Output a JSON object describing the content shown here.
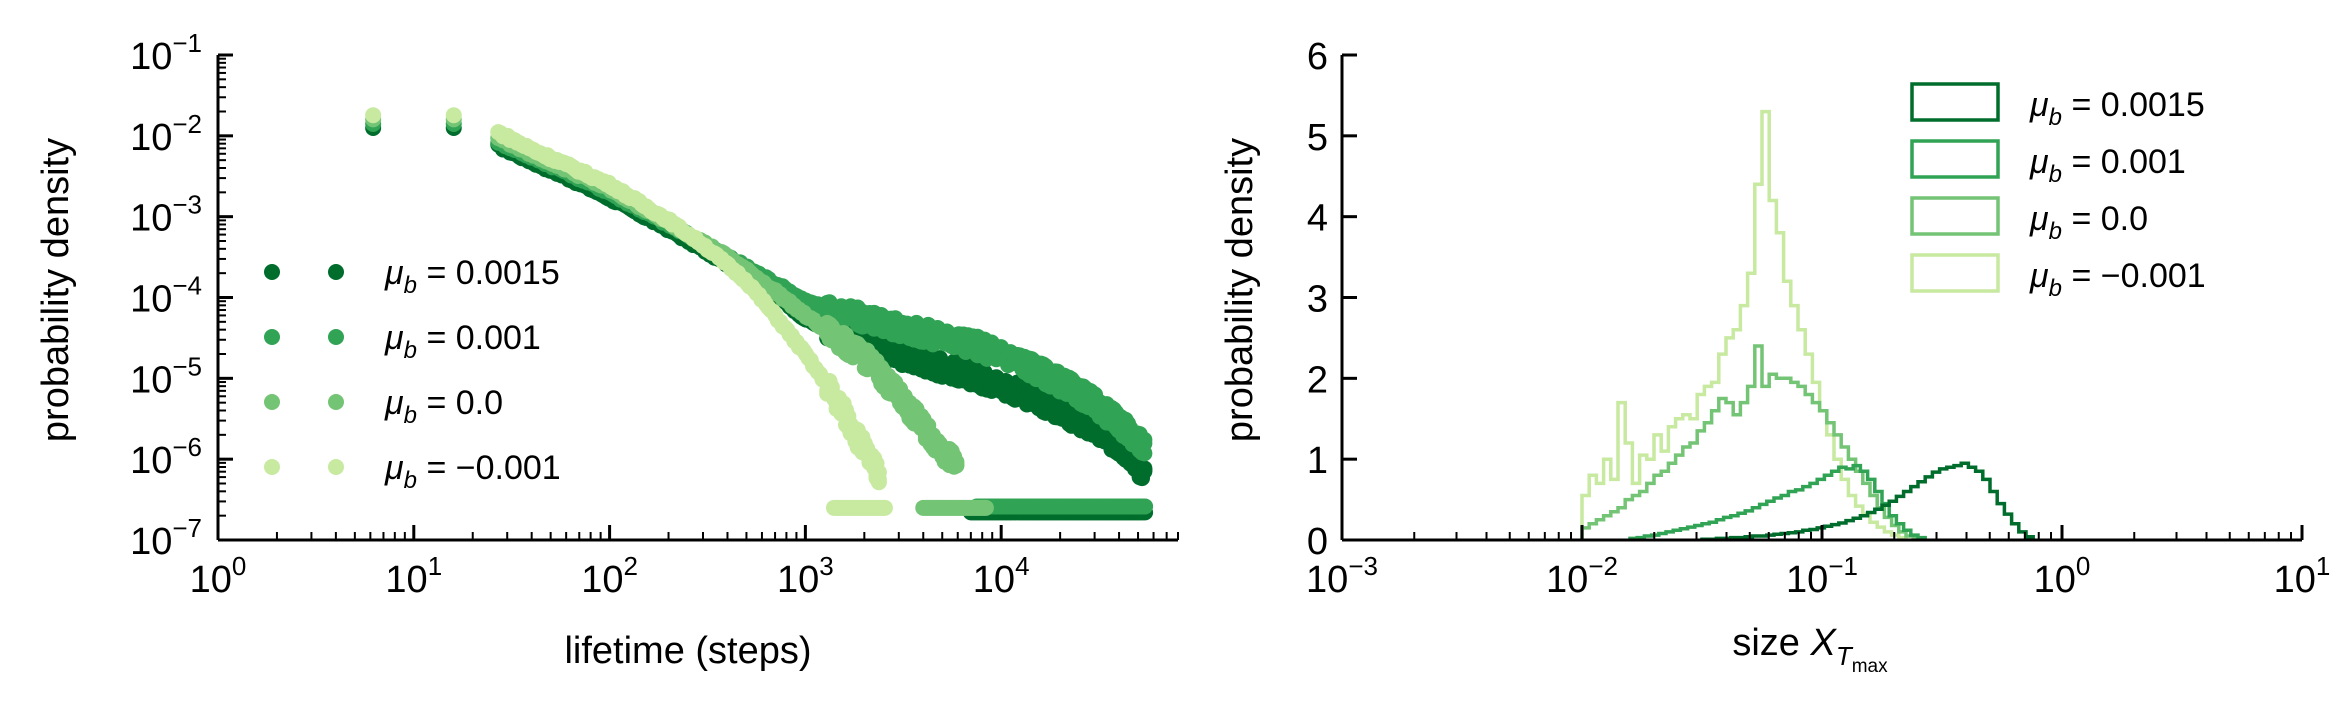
{
  "colors": {
    "mu_0.0015": "#006d2c",
    "mu_0.001": "#31a354",
    "mu_0.0": "#74c476",
    "mu_-0.001": "#c7e9a0"
  },
  "chart_data": [
    {
      "type": "scatter",
      "xscale": "log",
      "yscale": "log",
      "xlabel": "lifetime (steps)",
      "ylabel": "probability density",
      "xlim": [
        1,
        80000
      ],
      "ylim": [
        1e-07,
        0.1
      ],
      "x_ticks": [
        {
          "value": 1,
          "base": "10",
          "exp": "0"
        },
        {
          "value": 10,
          "base": "10",
          "exp": "1"
        },
        {
          "value": 100,
          "base": "10",
          "exp": "2"
        },
        {
          "value": 1000,
          "base": "10",
          "exp": "3"
        },
        {
          "value": 10000,
          "base": "10",
          "exp": "4"
        }
      ],
      "y_ticks": [
        {
          "value": 1e-07,
          "base": "10",
          "exp": "−7"
        },
        {
          "value": 1e-06,
          "base": "10",
          "exp": "−6"
        },
        {
          "value": 1e-05,
          "base": "10",
          "exp": "−5"
        },
        {
          "value": 0.0001,
          "base": "10",
          "exp": "−4"
        },
        {
          "value": 0.001,
          "base": "10",
          "exp": "−3"
        },
        {
          "value": 0.01,
          "base": "10",
          "exp": "−2"
        },
        {
          "value": 0.1,
          "base": "10",
          "exp": "−1"
        }
      ],
      "legend": {
        "position": "lower-left",
        "entries": [
          {
            "symbol": "μ",
            "sub": "b",
            "rest": " = 0.0015",
            "color_key": "mu_0.0015"
          },
          {
            "symbol": "μ",
            "sub": "b",
            "rest": " = 0.001",
            "color_key": "mu_0.001"
          },
          {
            "symbol": "μ",
            "sub": "b",
            "rest": " = 0.0",
            "color_key": "mu_0.0"
          },
          {
            "symbol": "μ",
            "sub": "b",
            "rest": " = −0.001",
            "color_key": "mu_-0.001"
          }
        ]
      },
      "series": [
        {
          "color_key": "mu_0.0015",
          "curve": [
            [
              6.2,
              0.0125
            ],
            [
              16,
              0.0125
            ],
            [
              27,
              0.0075
            ],
            [
              40,
              0.0048
            ],
            [
              60,
              0.0031
            ],
            [
              100,
              0.0017
            ],
            [
              200,
              0.0007
            ],
            [
              400,
              0.00026
            ],
            [
              700,
              0.00011
            ],
            [
              1000,
              5.5e-05
            ],
            [
              1500,
              3.3e-05
            ],
            [
              2500,
              2.2e-05
            ],
            [
              4000,
              1.6e-05
            ],
            [
              7000,
              1.1e-05
            ],
            [
              12000,
              7e-06
            ],
            [
              20000,
              4e-06
            ],
            [
              30000,
              2.3e-06
            ],
            [
              45000,
              1.2e-06
            ],
            [
              55000,
              6e-07
            ]
          ],
          "floor": {
            "x0": 7000,
            "x1": 55000,
            "y": 2.2e-07
          }
        },
        {
          "color_key": "mu_0.001",
          "curve": [
            [
              6.2,
              0.014
            ],
            [
              16,
              0.014
            ],
            [
              27,
              0.0085
            ],
            [
              40,
              0.0055
            ],
            [
              60,
              0.0036
            ],
            [
              100,
              0.002
            ],
            [
              200,
              0.0008
            ],
            [
              400,
              0.00032
            ],
            [
              700,
              0.00015
            ],
            [
              1000,
              9e-05
            ],
            [
              1500,
              6.5e-05
            ],
            [
              2500,
              4.8e-05
            ],
            [
              4000,
              3.6e-05
            ],
            [
              7000,
              2.7e-05
            ],
            [
              12000,
              1.7e-05
            ],
            [
              20000,
              9e-06
            ],
            [
              30000,
              5e-06
            ],
            [
              45000,
              2.2e-06
            ],
            [
              55000,
              1.3e-06
            ]
          ],
          "floor": {
            "x0": 7500,
            "x1": 55000,
            "y": 2.6e-07
          }
        },
        {
          "color_key": "mu_0.0",
          "curve": [
            [
              6.2,
              0.016
            ],
            [
              16,
              0.016
            ],
            [
              27,
              0.0095
            ],
            [
              40,
              0.006
            ],
            [
              60,
              0.0039
            ],
            [
              100,
              0.0022
            ],
            [
              200,
              0.00085
            ],
            [
              400,
              0.00032
            ],
            [
              700,
              0.00012
            ],
            [
              1000,
              6e-05
            ],
            [
              1500,
              3e-05
            ],
            [
              2200,
              1.5e-05
            ],
            [
              3000,
              6e-06
            ],
            [
              4000,
              2.5e-06
            ],
            [
              5000,
              1.3e-06
            ],
            [
              6000,
              8e-07
            ]
          ],
          "floor": {
            "x0": 4000,
            "x1": 8500,
            "y": 2.5e-07
          }
        },
        {
          "color_key": "mu_-0.001",
          "curve": [
            [
              6.2,
              0.018
            ],
            [
              16,
              0.018
            ],
            [
              27,
              0.011
            ],
            [
              40,
              0.0068
            ],
            [
              60,
              0.0044
            ],
            [
              100,
              0.0025
            ],
            [
              200,
              0.0009
            ],
            [
              300,
              0.00045
            ],
            [
              500,
              0.00016
            ],
            [
              700,
              6e-05
            ],
            [
              1000,
              2e-05
            ],
            [
              1300,
              8e-06
            ],
            [
              1600,
              3.5e-06
            ],
            [
              2000,
              1.3e-06
            ],
            [
              2400,
              6e-07
            ]
          ],
          "floor": {
            "x0": 1400,
            "x1": 2600,
            "y": 2.5e-07
          }
        }
      ]
    },
    {
      "type": "histogram",
      "xscale": "log",
      "yscale": "linear",
      "xlabel": "size",
      "xlabel_symbol": "X",
      "xlabel_sub": "T",
      "xlabel_subsub": "max",
      "ylabel": "probability density",
      "xlim": [
        0.001,
        10
      ],
      "ylim": [
        0,
        6
      ],
      "x_ticks": [
        {
          "value": 0.001,
          "base": "10",
          "exp": "−3"
        },
        {
          "value": 0.01,
          "base": "10",
          "exp": "−2"
        },
        {
          "value": 0.1,
          "base": "10",
          "exp": "−1"
        },
        {
          "value": 1,
          "base": "10",
          "exp": "0"
        },
        {
          "value": 10,
          "base": "10",
          "exp": "1"
        }
      ],
      "y_ticks": [
        0,
        1,
        2,
        3,
        4,
        5,
        6
      ],
      "legend": {
        "position": "top-right",
        "entries": [
          {
            "symbol": "μ",
            "sub": "b",
            "rest": " = 0.0015",
            "color_key": "mu_0.0015"
          },
          {
            "symbol": "μ",
            "sub": "b",
            "rest": " = 0.001",
            "color_key": "mu_0.001"
          },
          {
            "symbol": "μ",
            "sub": "b",
            "rest": " = 0.0",
            "color_key": "mu_0.0"
          },
          {
            "symbol": "μ",
            "sub": "b",
            "rest": " = −0.001",
            "color_key": "mu_-0.001"
          }
        ]
      },
      "series": [
        {
          "color_key": "mu_-0.001",
          "bins": {
            "log_start": -2.0,
            "log_width": 0.03,
            "heights": [
              0.55,
              0.8,
              0.7,
              1.0,
              0.75,
              1.7,
              1.2,
              0.7,
              1.05,
              1.0,
              1.3,
              1.1,
              1.4,
              1.5,
              1.55,
              1.5,
              1.8,
              1.9,
              1.95,
              2.3,
              2.5,
              2.6,
              2.9,
              3.3,
              4.4,
              5.3,
              4.2,
              3.8,
              3.2,
              2.9,
              2.6,
              2.3,
              1.95,
              1.6,
              1.3,
              1.0,
              0.75,
              0.55,
              0.42,
              0.32,
              0.22,
              0.16,
              0.1,
              0.06,
              0.03
            ]
          }
        },
        {
          "color_key": "mu_0.0",
          "bins": {
            "log_start": -2.0,
            "log_width": 0.03,
            "heights": [
              0.15,
              0.2,
              0.25,
              0.3,
              0.35,
              0.4,
              0.5,
              0.55,
              0.6,
              0.7,
              0.8,
              0.85,
              0.95,
              1.05,
              1.15,
              1.2,
              1.35,
              1.45,
              1.6,
              1.75,
              1.7,
              1.55,
              1.7,
              1.9,
              2.4,
              1.9,
              2.05,
              2.0,
              2.0,
              1.95,
              1.9,
              1.8,
              1.7,
              1.6,
              1.45,
              1.3,
              1.15,
              1.0,
              0.85,
              0.7,
              0.55,
              0.4,
              0.28,
              0.18,
              0.1,
              0.05,
              0.02
            ]
          }
        },
        {
          "color_key": "mu_0.001",
          "bins": {
            "log_start": -1.8,
            "log_width": 0.03,
            "heights": [
              0.02,
              0.03,
              0.05,
              0.06,
              0.08,
              0.1,
              0.12,
              0.14,
              0.16,
              0.18,
              0.2,
              0.22,
              0.25,
              0.28,
              0.3,
              0.33,
              0.36,
              0.4,
              0.44,
              0.48,
              0.52,
              0.55,
              0.6,
              0.62,
              0.66,
              0.7,
              0.75,
              0.8,
              0.85,
              0.9,
              0.88,
              0.92,
              0.85,
              0.75,
              0.6,
              0.45,
              0.3,
              0.2,
              0.12,
              0.06,
              0.03
            ]
          }
        },
        {
          "color_key": "mu_0.0015",
          "bins": {
            "log_start": -1.5,
            "log_width": 0.03,
            "heights": [
              0.01,
              0.01,
              0.02,
              0.02,
              0.03,
              0.03,
              0.04,
              0.05,
              0.05,
              0.06,
              0.07,
              0.08,
              0.09,
              0.1,
              0.12,
              0.13,
              0.15,
              0.17,
              0.19,
              0.21,
              0.24,
              0.27,
              0.3,
              0.34,
              0.38,
              0.43,
              0.48,
              0.54,
              0.6,
              0.66,
              0.72,
              0.78,
              0.84,
              0.88,
              0.9,
              0.92,
              0.95,
              0.9,
              0.85,
              0.75,
              0.6,
              0.45,
              0.32,
              0.2,
              0.1,
              0.04
            ]
          }
        }
      ]
    }
  ]
}
